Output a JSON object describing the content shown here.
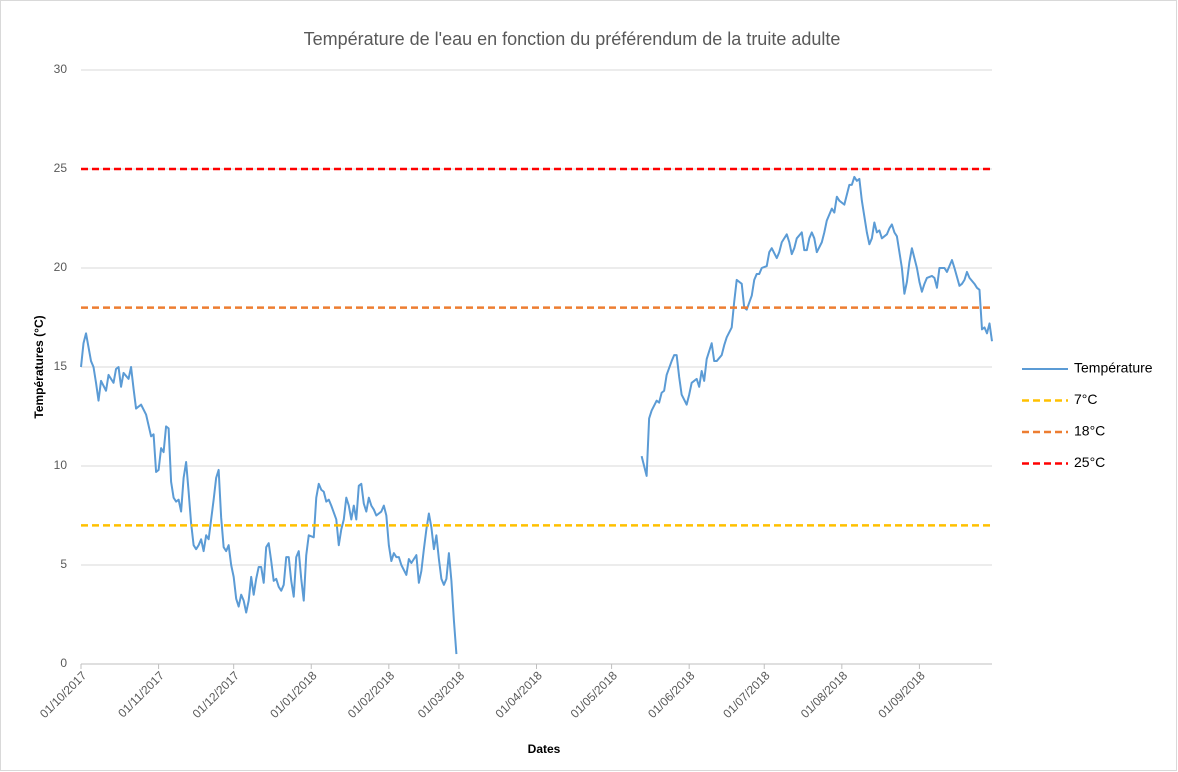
{
  "chart_data": {
    "type": "line",
    "title": "Température de l'eau en fonction du préférendum de la truite adulte",
    "x_label": "Dates",
    "y_label": "Températures (°C)",
    "xlim": [
      "01/10/2017",
      "30/09/2018"
    ],
    "xticks": [
      "01/10/2017",
      "01/11/2017",
      "01/12/2017",
      "01/01/2018",
      "01/02/2018",
      "01/03/2018",
      "01/04/2018",
      "01/05/2018",
      "01/06/2018",
      "01/07/2018",
      "01/08/2018",
      "01/09/2018"
    ],
    "ylim": [
      0,
      30
    ],
    "yticks": [
      0,
      5,
      10,
      15,
      20,
      25,
      30
    ],
    "grid": true,
    "legend": "right",
    "series": [
      {
        "name": "Température",
        "color": "#5b9bd5",
        "dash": false,
        "x": [
          "01/10/2017",
          "02/10/2017",
          "03/10/2017",
          "05/10/2017",
          "06/10/2017",
          "07/10/2017",
          "08/10/2017",
          "09/10/2017",
          "11/10/2017",
          "12/10/2017",
          "14/10/2017",
          "15/10/2017",
          "16/10/2017",
          "17/10/2017",
          "18/10/2017",
          "20/10/2017",
          "21/10/2017",
          "22/10/2017",
          "23/10/2017",
          "25/10/2017",
          "27/10/2017",
          "29/10/2017",
          "30/10/2017",
          "31/10/2017",
          "01/11/2017",
          "02/11/2017",
          "03/11/2017",
          "04/11/2017",
          "05/11/2017",
          "06/11/2017",
          "07/11/2017",
          "08/11/2017",
          "09/11/2017",
          "10/11/2017",
          "11/11/2017",
          "12/11/2017",
          "13/11/2017",
          "14/11/2017",
          "15/11/2017",
          "16/11/2017",
          "17/11/2017",
          "18/11/2017",
          "19/11/2017",
          "20/11/2017",
          "21/11/2017",
          "23/11/2017",
          "24/11/2017",
          "25/11/2017",
          "26/11/2017",
          "27/11/2017",
          "28/11/2017",
          "29/11/2017",
          "30/11/2017",
          "01/12/2017",
          "02/12/2017",
          "03/12/2017",
          "04/12/2017",
          "05/12/2017",
          "06/12/2017",
          "07/12/2017",
          "08/12/2017",
          "09/12/2017",
          "10/12/2017",
          "11/12/2017",
          "12/12/2017",
          "13/12/2017",
          "14/12/2017",
          "15/12/2017",
          "16/12/2017",
          "17/12/2017",
          "18/12/2017",
          "19/12/2017",
          "20/12/2017",
          "21/12/2017",
          "22/12/2017",
          "23/12/2017",
          "24/12/2017",
          "25/12/2017",
          "26/12/2017",
          "27/12/2017",
          "28/12/2017",
          "29/12/2017",
          "30/12/2017",
          "31/12/2017",
          "02/01/2018",
          "03/01/2018",
          "04/01/2018",
          "05/01/2018",
          "06/01/2018",
          "07/01/2018",
          "08/01/2018",
          "09/01/2018",
          "11/01/2018",
          "12/01/2018",
          "13/01/2018",
          "14/01/2018",
          "15/01/2018",
          "16/01/2018",
          "17/01/2018",
          "18/01/2018",
          "19/01/2018",
          "20/01/2018",
          "21/01/2018",
          "22/01/2018",
          "23/01/2018",
          "24/01/2018",
          "25/01/2018",
          "26/01/2018",
          "27/01/2018",
          "29/01/2018",
          "30/01/2018",
          "31/01/2018",
          "01/02/2018",
          "02/02/2018",
          "03/02/2018",
          "04/02/2018",
          "05/02/2018",
          "06/02/2018",
          "08/02/2018",
          "09/02/2018",
          "10/02/2018",
          "12/02/2018",
          "13/02/2018",
          "14/02/2018",
          "15/02/2018",
          "16/02/2018",
          "17/02/2018",
          "18/02/2018",
          "19/02/2018",
          "20/02/2018",
          "21/02/2018",
          "22/02/2018",
          "23/02/2018",
          "24/02/2018",
          "25/02/2018",
          "26/02/2018",
          "27/02/2018",
          "28/02/2018",
          "01/04/2018",
          "13/05/2018",
          "15/05/2018",
          "16/05/2018",
          "17/05/2018",
          "19/05/2018",
          "20/05/2018",
          "21/05/2018",
          "22/05/2018",
          "23/05/2018",
          "25/05/2018",
          "26/05/2018",
          "27/05/2018",
          "28/05/2018",
          "29/05/2018",
          "31/05/2018",
          "01/06/2018",
          "02/06/2018",
          "04/06/2018",
          "05/06/2018",
          "06/06/2018",
          "07/06/2018",
          "08/06/2018",
          "10/06/2018",
          "11/06/2018",
          "12/06/2018",
          "14/06/2018",
          "15/06/2018",
          "16/06/2018",
          "18/06/2018",
          "19/06/2018",
          "20/06/2018",
          "22/06/2018",
          "23/06/2018",
          "24/06/2018",
          "26/06/2018",
          "27/06/2018",
          "28/06/2018",
          "29/06/2018",
          "30/06/2018",
          "02/07/2018",
          "03/07/2018",
          "04/07/2018",
          "06/07/2018",
          "07/07/2018",
          "08/07/2018",
          "10/07/2018",
          "11/07/2018",
          "12/07/2018",
          "13/07/2018",
          "14/07/2018",
          "16/07/2018",
          "17/07/2018",
          "18/07/2018",
          "19/07/2018",
          "20/07/2018",
          "21/07/2018",
          "22/07/2018",
          "24/07/2018",
          "25/07/2018",
          "26/07/2018",
          "28/07/2018",
          "29/07/2018",
          "30/07/2018",
          "31/07/2018",
          "02/08/2018",
          "03/08/2018",
          "04/08/2018",
          "05/08/2018",
          "06/08/2018",
          "07/08/2018",
          "08/08/2018",
          "09/08/2018",
          "11/08/2018",
          "12/08/2018",
          "13/08/2018",
          "14/08/2018",
          "15/08/2018",
          "16/08/2018",
          "17/08/2018",
          "19/08/2018",
          "20/08/2018",
          "21/08/2018",
          "22/08/2018",
          "23/08/2018",
          "25/08/2018",
          "26/08/2018",
          "27/08/2018",
          "28/08/2018",
          "29/08/2018",
          "31/08/2018",
          "01/09/2018",
          "02/09/2018",
          "03/09/2018",
          "04/09/2018",
          "06/09/2018",
          "07/09/2018",
          "08/09/2018",
          "09/09/2018",
          "11/09/2018",
          "12/09/2018",
          "13/09/2018",
          "14/09/2018",
          "15/09/2018",
          "17/09/2018",
          "18/09/2018",
          "19/09/2018",
          "20/09/2018",
          "21/09/2018",
          "23/09/2018",
          "24/09/2018",
          "25/09/2018",
          "26/09/2018",
          "27/09/2018",
          "28/09/2018",
          "29/09/2018",
          "30/09/2018"
        ],
        "values": [
          15.0,
          16.2,
          16.7,
          15.3,
          15.0,
          14.2,
          13.3,
          14.3,
          13.8,
          14.6,
          14.2,
          14.9,
          15.0,
          14.0,
          14.7,
          14.4,
          15.0,
          13.9,
          12.9,
          13.1,
          12.6,
          11.5,
          11.6,
          9.7,
          9.8,
          10.9,
          10.7,
          12.0,
          11.9,
          9.2,
          8.4,
          8.2,
          8.3,
          7.7,
          9.4,
          10.2,
          8.7,
          7.1,
          6.0,
          5.8,
          6.0,
          6.3,
          5.7,
          6.5,
          6.3,
          8.3,
          9.4,
          9.8,
          7.4,
          5.9,
          5.7,
          6.0,
          5.0,
          4.4,
          3.3,
          2.9,
          3.5,
          3.2,
          2.6,
          3.2,
          4.4,
          3.5,
          4.3,
          4.9,
          4.9,
          4.1,
          5.9,
          6.1,
          5.2,
          4.2,
          4.3,
          3.9,
          3.7,
          4.0,
          5.4,
          5.4,
          4.2,
          3.4,
          5.4,
          5.7,
          4.3,
          3.2,
          5.5,
          6.5,
          6.4,
          8.4,
          9.1,
          8.8,
          8.7,
          8.2,
          8.3,
          8.0,
          7.3,
          6.0,
          6.8,
          7.3,
          8.4,
          8.0,
          7.3,
          8.0,
          7.3,
          9.0,
          9.1,
          8.1,
          7.7,
          8.4,
          8.0,
          7.8,
          7.5,
          7.7,
          8.0,
          7.5,
          6.0,
          5.2,
          5.6,
          5.4,
          5.4,
          5.0,
          4.5,
          5.3,
          5.1,
          5.5,
          4.1,
          4.7,
          5.8,
          6.8,
          7.6,
          6.9,
          5.8,
          6.5,
          5.3,
          4.3,
          4.0,
          4.3,
          5.6,
          4.2,
          2.2,
          0.5,
          null,
          10.5,
          9.5,
          12.4,
          12.8,
          13.3,
          13.2,
          13.7,
          13.8,
          14.6,
          15.3,
          15.6,
          15.6,
          14.5,
          13.6,
          13.1,
          13.6,
          14.2,
          14.4,
          14.0,
          14.8,
          14.3,
          15.4,
          16.2,
          15.3,
          15.3,
          15.6,
          16.1,
          16.5,
          17.0,
          18.3,
          19.4,
          19.2,
          18.0,
          17.9,
          18.6,
          19.4,
          19.7,
          19.7,
          20.0,
          20.1,
          20.8,
          21.0,
          20.5,
          20.8,
          21.3,
          21.7,
          21.3,
          20.7,
          21.0,
          21.5,
          21.8,
          20.9,
          20.9,
          21.5,
          21.8,
          21.5,
          20.8,
          21.3,
          21.8,
          22.4,
          23.0,
          22.8,
          23.6,
          23.4,
          23.2,
          23.7,
          24.2,
          24.2,
          24.6,
          24.4,
          24.5,
          23.4,
          21.8,
          21.2,
          21.5,
          22.3,
          21.8,
          21.9,
          21.5,
          21.7,
          22.0,
          22.2,
          21.8,
          21.6,
          20.0,
          18.7,
          19.3,
          20.3,
          21.0,
          20.0,
          19.3,
          18.8,
          19.2,
          19.5,
          19.6,
          19.5,
          19.0,
          20.0,
          20.0,
          19.8,
          20.1,
          20.4,
          20.0,
          19.1,
          19.2,
          19.4,
          19.8,
          19.5,
          19.2,
          19.0,
          18.9,
          16.9,
          17.0,
          16.7,
          17.2,
          16.3
        ]
      },
      {
        "name": "7°C",
        "color": "#ffc000",
        "dash": true,
        "x": [
          "01/10/2017",
          "30/09/2018"
        ],
        "values": [
          7,
          7
        ]
      },
      {
        "name": "18°C",
        "color": "#ed7d31",
        "dash": true,
        "x": [
          "01/10/2017",
          "30/09/2018"
        ],
        "values": [
          18,
          18
        ]
      },
      {
        "name": "25°C",
        "color": "#ff0000",
        "dash": true,
        "x": [
          "01/10/2017",
          "30/09/2018"
        ],
        "values": [
          25,
          25
        ]
      }
    ]
  }
}
